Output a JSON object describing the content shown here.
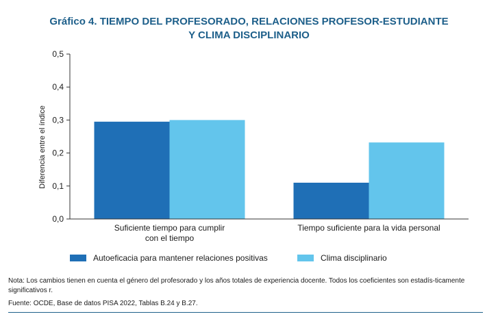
{
  "title_line1": "Gráfico 4. TIEMPO DEL PROFESORADO, RELACIONES PROFESOR-ESTUDIANTE",
  "title_line2": "Y CLIMA DISCIPLINARIO",
  "note_text": "Nota: Los cambios tienen en cuenta el género del profesorado y los años totales de experiencia docente. Todos los coeficientes son estadís-ticamente significativos r.",
  "source_text": "Fuente: OCDE, Base de datos PISA 2022, Tablas B.24 y B.27.",
  "colors": {
    "title": "#1d5f8a",
    "series1": "#1f6fb6",
    "series2": "#63c5ec",
    "axis": "#333333"
  },
  "chart_data": {
    "type": "bar",
    "ylabel": "Diferencia entre el índice",
    "xlabel": "",
    "ylim": [
      0,
      0.5
    ],
    "yticks": [
      "0,0",
      "0,1",
      "0,2",
      "0,3",
      "0,4",
      "0,5"
    ],
    "grid": false,
    "legend_position": "bottom",
    "categories": [
      [
        "Suficiente tiempo para cumplir",
        "con el tiempo"
      ],
      [
        "Tiempo suficiente para la vida personal"
      ]
    ],
    "series": [
      {
        "name": "Autoeficacia para mantener relaciones positivas",
        "values": [
          0.295,
          0.11
        ]
      },
      {
        "name": "Clima disciplinario",
        "values": [
          0.3,
          0.232
        ]
      }
    ]
  }
}
